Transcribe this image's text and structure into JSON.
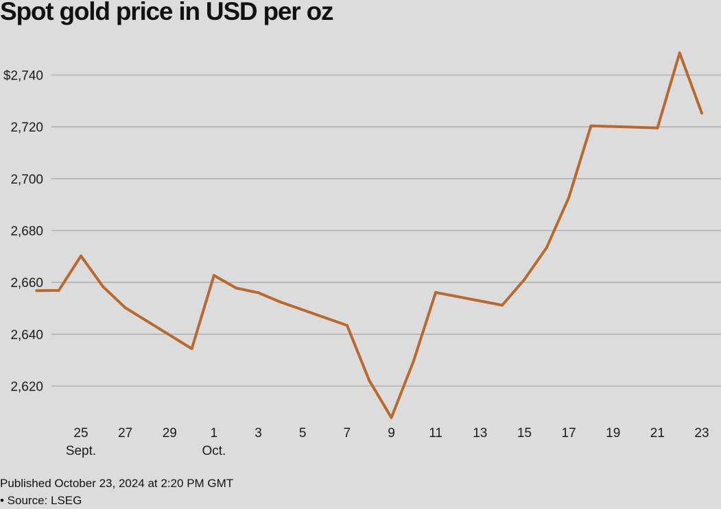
{
  "chart_data": {
    "type": "line",
    "title": "Spot gold price in USD per oz",
    "xlabel": "",
    "ylabel": "",
    "ylim": [
      2606,
      2750
    ],
    "y_ticks": [
      2620,
      2640,
      2660,
      2680,
      2700,
      2720,
      2740
    ],
    "y_tick_labels": [
      "2,620",
      "2,640",
      "2,660",
      "2,680",
      "2,700",
      "2,720",
      "$2,740"
    ],
    "x_ticks": [
      {
        "date": "2024-09-25",
        "label": "25",
        "month": "Sept."
      },
      {
        "date": "2024-09-27",
        "label": "27",
        "month": ""
      },
      {
        "date": "2024-09-29",
        "label": "29",
        "month": ""
      },
      {
        "date": "2024-10-01",
        "label": "1",
        "month": "Oct."
      },
      {
        "date": "2024-10-03",
        "label": "3",
        "month": ""
      },
      {
        "date": "2024-10-05",
        "label": "5",
        "month": ""
      },
      {
        "date": "2024-10-07",
        "label": "7",
        "month": ""
      },
      {
        "date": "2024-10-09",
        "label": "9",
        "month": ""
      },
      {
        "date": "2024-10-11",
        "label": "11",
        "month": ""
      },
      {
        "date": "2024-10-13",
        "label": "13",
        "month": ""
      },
      {
        "date": "2024-10-15",
        "label": "15",
        "month": ""
      },
      {
        "date": "2024-10-17",
        "label": "17",
        "month": ""
      },
      {
        "date": "2024-10-19",
        "label": "19",
        "month": ""
      },
      {
        "date": "2024-10-21",
        "label": "21",
        "month": ""
      },
      {
        "date": "2024-10-23",
        "label": "23",
        "month": ""
      }
    ],
    "grid": true,
    "series": [
      {
        "color": "#b8692e",
        "points": [
          {
            "x": "2024-09-23",
            "y": 2656.8
          },
          {
            "x": "2024-09-24",
            "y": 2656.9
          },
          {
            "x": "2024-09-25",
            "y": 2670.2
          },
          {
            "x": "2024-09-26",
            "y": 2658.3
          },
          {
            "x": "2024-09-27",
            "y": 2650.2
          },
          {
            "x": "2024-09-30",
            "y": 2634.4
          },
          {
            "x": "2024-10-01",
            "y": 2662.7
          },
          {
            "x": "2024-10-02",
            "y": 2657.8
          },
          {
            "x": "2024-10-03",
            "y": 2656.0
          },
          {
            "x": "2024-10-04",
            "y": 2652.4
          },
          {
            "x": "2024-10-07",
            "y": 2643.4
          },
          {
            "x": "2024-10-08",
            "y": 2622.2
          },
          {
            "x": "2024-10-09",
            "y": 2607.8
          },
          {
            "x": "2024-10-10",
            "y": 2629.6
          },
          {
            "x": "2024-10-11",
            "y": 2656.1
          },
          {
            "x": "2024-10-14",
            "y": 2651.2
          },
          {
            "x": "2024-10-15",
            "y": 2661.1
          },
          {
            "x": "2024-10-16",
            "y": 2673.4
          },
          {
            "x": "2024-10-17",
            "y": 2692.7
          },
          {
            "x": "2024-10-18",
            "y": 2720.4
          },
          {
            "x": "2024-10-21",
            "y": 2719.6
          },
          {
            "x": "2024-10-22",
            "y": 2748.5
          },
          {
            "x": "2024-10-23",
            "y": 2725.3
          }
        ]
      }
    ]
  },
  "footer": {
    "published": "Published October 23, 2024 at 2:20 PM GMT",
    "source": "• Source: LSEG"
  }
}
